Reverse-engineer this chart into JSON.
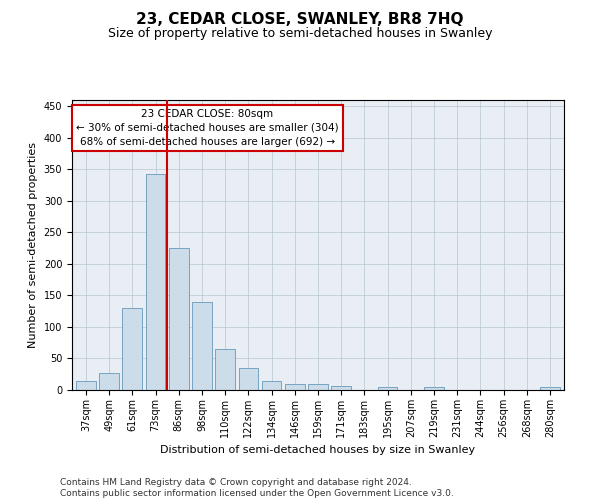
{
  "title": "23, CEDAR CLOSE, SWANLEY, BR8 7HQ",
  "subtitle": "Size of property relative to semi-detached houses in Swanley",
  "xlabel": "Distribution of semi-detached houses by size in Swanley",
  "ylabel": "Number of semi-detached properties",
  "bar_labels": [
    "37sqm",
    "49sqm",
    "61sqm",
    "73sqm",
    "86sqm",
    "98sqm",
    "110sqm",
    "122sqm",
    "134sqm",
    "146sqm",
    "159sqm",
    "171sqm",
    "183sqm",
    "195sqm",
    "207sqm",
    "219sqm",
    "231sqm",
    "244sqm",
    "256sqm",
    "268sqm",
    "280sqm"
  ],
  "bar_values": [
    15,
    27,
    130,
    343,
    225,
    140,
    65,
    35,
    15,
    10,
    10,
    7,
    0,
    4,
    0,
    4,
    0,
    0,
    0,
    0,
    4
  ],
  "bar_color": "#ccdce8",
  "bar_edge_color": "#6699bb",
  "property_line_x": 3.5,
  "property_sqm": 80,
  "annotation_title": "23 CEDAR CLOSE: 80sqm",
  "annotation_line1": "← 30% of semi-detached houses are smaller (304)",
  "annotation_line2": "68% of semi-detached houses are larger (692) →",
  "annotation_box_color": "#ffffff",
  "annotation_box_edge": "#cc0000",
  "property_line_color": "#cc0000",
  "ylim": [
    0,
    460
  ],
  "yticks": [
    0,
    50,
    100,
    150,
    200,
    250,
    300,
    350,
    400,
    450
  ],
  "background_color": "#e8eef4",
  "footer_line1": "Contains HM Land Registry data © Crown copyright and database right 2024.",
  "footer_line2": "Contains public sector information licensed under the Open Government Licence v3.0.",
  "title_fontsize": 11,
  "subtitle_fontsize": 9,
  "axis_label_fontsize": 8,
  "tick_fontsize": 7,
  "annotation_fontsize": 7.5,
  "footer_fontsize": 6.5
}
